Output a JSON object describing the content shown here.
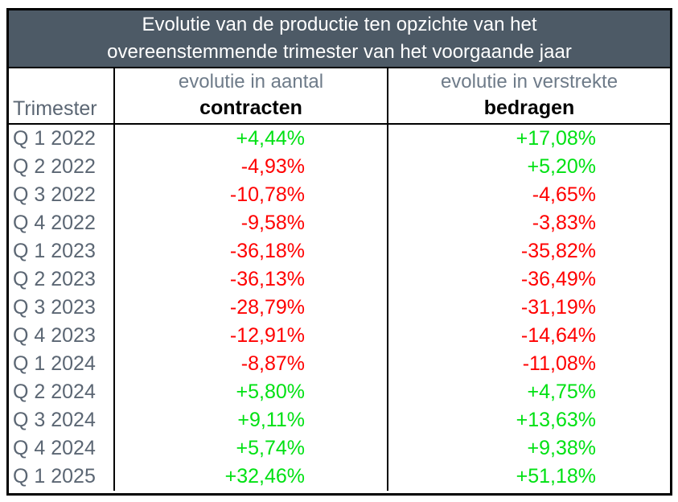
{
  "title": {
    "line1": "Evolutie van de productie ten opzichte van het",
    "line2": "overeenstemmende trimester van het voorgaande jaar"
  },
  "columns": {
    "trimester": "Trimester",
    "col2_top": "evolutie in aantal",
    "col2_bottom": "contracten",
    "col3_top": "evolutie in verstrekte",
    "col3_bottom": "bedragen"
  },
  "colors": {
    "header_bg": "#4d5a66",
    "header_text": "#ffffff",
    "label_text": "#5b6673",
    "subheader_text": "#6e7b89",
    "positive": "#00e113",
    "negative": "#ff0000",
    "border": "#000000"
  },
  "chart_data": {
    "type": "table",
    "title": "Evolutie van de productie ten opzichte van het overeenstemmende trimester van het voorgaande jaar",
    "columns": [
      "Trimester",
      "evolutie in aantal contracten",
      "evolutie in verstrekte bedragen"
    ],
    "rows": [
      {
        "trimester": "Q 1 2022",
        "contracten": "+4,44%",
        "bedragen": "+17,08%"
      },
      {
        "trimester": "Q 2 2022",
        "contracten": "-4,93%",
        "bedragen": "+5,20%"
      },
      {
        "trimester": "Q 3 2022",
        "contracten": "-10,78%",
        "bedragen": "-4,65%"
      },
      {
        "trimester": "Q 4 2022",
        "contracten": "-9,58%",
        "bedragen": "-3,83%"
      },
      {
        "trimester": "Q 1 2023",
        "contracten": "-36,18%",
        "bedragen": "-35,82%"
      },
      {
        "trimester": "Q 2 2023",
        "contracten": "-36,13%",
        "bedragen": "-36,49%"
      },
      {
        "trimester": "Q 3 2023",
        "contracten": "-28,79%",
        "bedragen": "-31,19%"
      },
      {
        "trimester": "Q 4 2023",
        "contracten": "-12,91%",
        "bedragen": "-14,64%"
      },
      {
        "trimester": "Q 1 2024",
        "contracten": "-8,87%",
        "bedragen": "-11,08%"
      },
      {
        "trimester": "Q 2 2024",
        "contracten": "+5,80%",
        "bedragen": "+4,75%"
      },
      {
        "trimester": "Q 3 2024",
        "contracten": "+9,11%",
        "bedragen": "+13,63%"
      },
      {
        "trimester": "Q 4 2024",
        "contracten": "+5,74%",
        "bedragen": "+9,38%"
      },
      {
        "trimester": "Q 1 2025",
        "contracten": "+32,46%",
        "bedragen": "+51,18%"
      }
    ]
  }
}
